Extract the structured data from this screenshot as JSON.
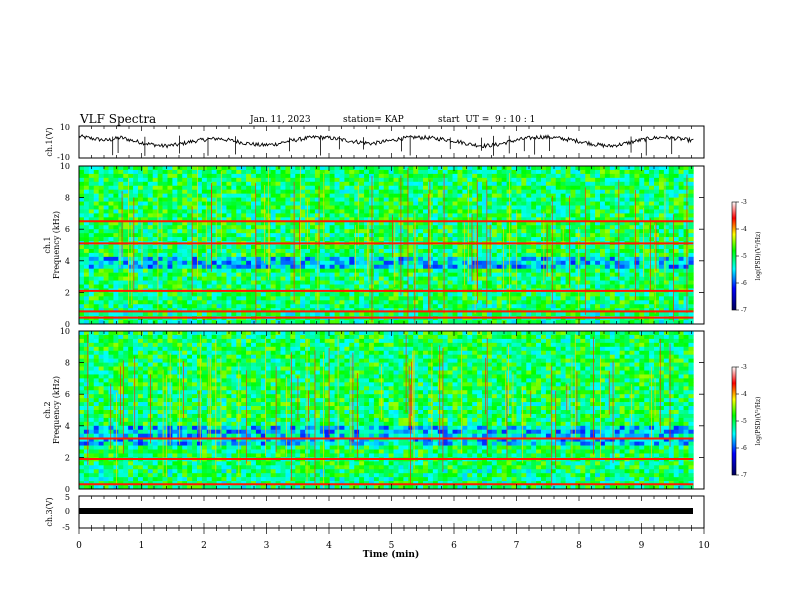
{
  "header": {
    "title": "VLF Spectra",
    "date": "Jan. 11, 2023",
    "station": "station= KAP",
    "start": "start  UT =  9 : 10 : 1"
  },
  "chart_data": [
    {
      "type": "line",
      "ylabel": "ch.1(V)",
      "ylim": [
        -10,
        10
      ],
      "yticks": [
        "10",
        "-10"
      ],
      "xlim": [
        0,
        10
      ],
      "description_series": "noisy waveform around ~2 V",
      "series": [
        {
          "values": [
            3.5,
            2.1,
            1.0,
            2.8,
            0.5,
            -1.2,
            -2.5,
            -1.8,
            0.2,
            1.5,
            2.2,
            0.8,
            -0.8,
            -2.0,
            -1.5,
            0.5,
            2.0,
            3.1,
            2.5,
            1.2,
            0.0,
            -1.0,
            0.4,
            2.0,
            3.0,
            2.6,
            1.8,
            0.6,
            -1.4,
            -2.4,
            -1.6,
            0.6,
            2.2,
            3.2,
            2.8,
            1.6,
            0.2,
            -1.6,
            -2.6,
            -1.2,
            0.8,
            2.4,
            3.0,
            2.0,
            0.8
          ]
        }
      ]
    },
    {
      "type": "heatmap",
      "ylabel_top": "ch.1",
      "ylabel": "Frequency  (kHz)",
      "ylim": [
        0,
        10
      ],
      "yticks": [
        "0",
        "2",
        "4",
        "6",
        "8",
        "10"
      ],
      "xlim": [
        0,
        10
      ],
      "colorbar": {
        "ticks": [
          "-3",
          "-4",
          "-5",
          "-6",
          "-7"
        ],
        "label": "log(PSD)(V²/Hz)",
        "range": [
          -7,
          -3
        ]
      },
      "strong_lines_khz": [
        0.4,
        0.8,
        2.1,
        5.1,
        6.5
      ],
      "dark_band_khz": [
        3.6,
        4.2
      ]
    },
    {
      "type": "heatmap",
      "ylabel_top": "ch.2",
      "ylabel": "Frequency  (kHz)",
      "ylim": [
        0,
        10
      ],
      "yticks": [
        "0",
        "2",
        "4",
        "6",
        "8",
        "10"
      ],
      "xlim": [
        0,
        10
      ],
      "colorbar": {
        "ticks": [
          "-3",
          "-4",
          "-5",
          "-6",
          "-7"
        ],
        "label": "log(PSD)(V²/Hz)",
        "range": [
          -7,
          -3
        ]
      },
      "strong_lines_khz": [
        0.3,
        1.9,
        3.2
      ],
      "dark_band_khz": [
        2.8,
        4.0
      ]
    },
    {
      "type": "line",
      "ylabel": "ch.3(V)",
      "ylim": [
        -5,
        5
      ],
      "yticks": [
        "5",
        "0",
        "-5"
      ],
      "xlim": [
        0,
        10
      ],
      "series": [
        {
          "values": [
            -0.5,
            -0.5,
            -0.5,
            -0.5,
            -0.5,
            -0.5,
            -0.5,
            -0.5,
            -0.5,
            -0.5,
            -0.5
          ]
        }
      ]
    }
  ],
  "xaxis": {
    "label": "Time  (min)",
    "ticks": [
      "0",
      "1",
      "2",
      "3",
      "4",
      "5",
      "6",
      "7",
      "8",
      "9",
      "10"
    ]
  }
}
